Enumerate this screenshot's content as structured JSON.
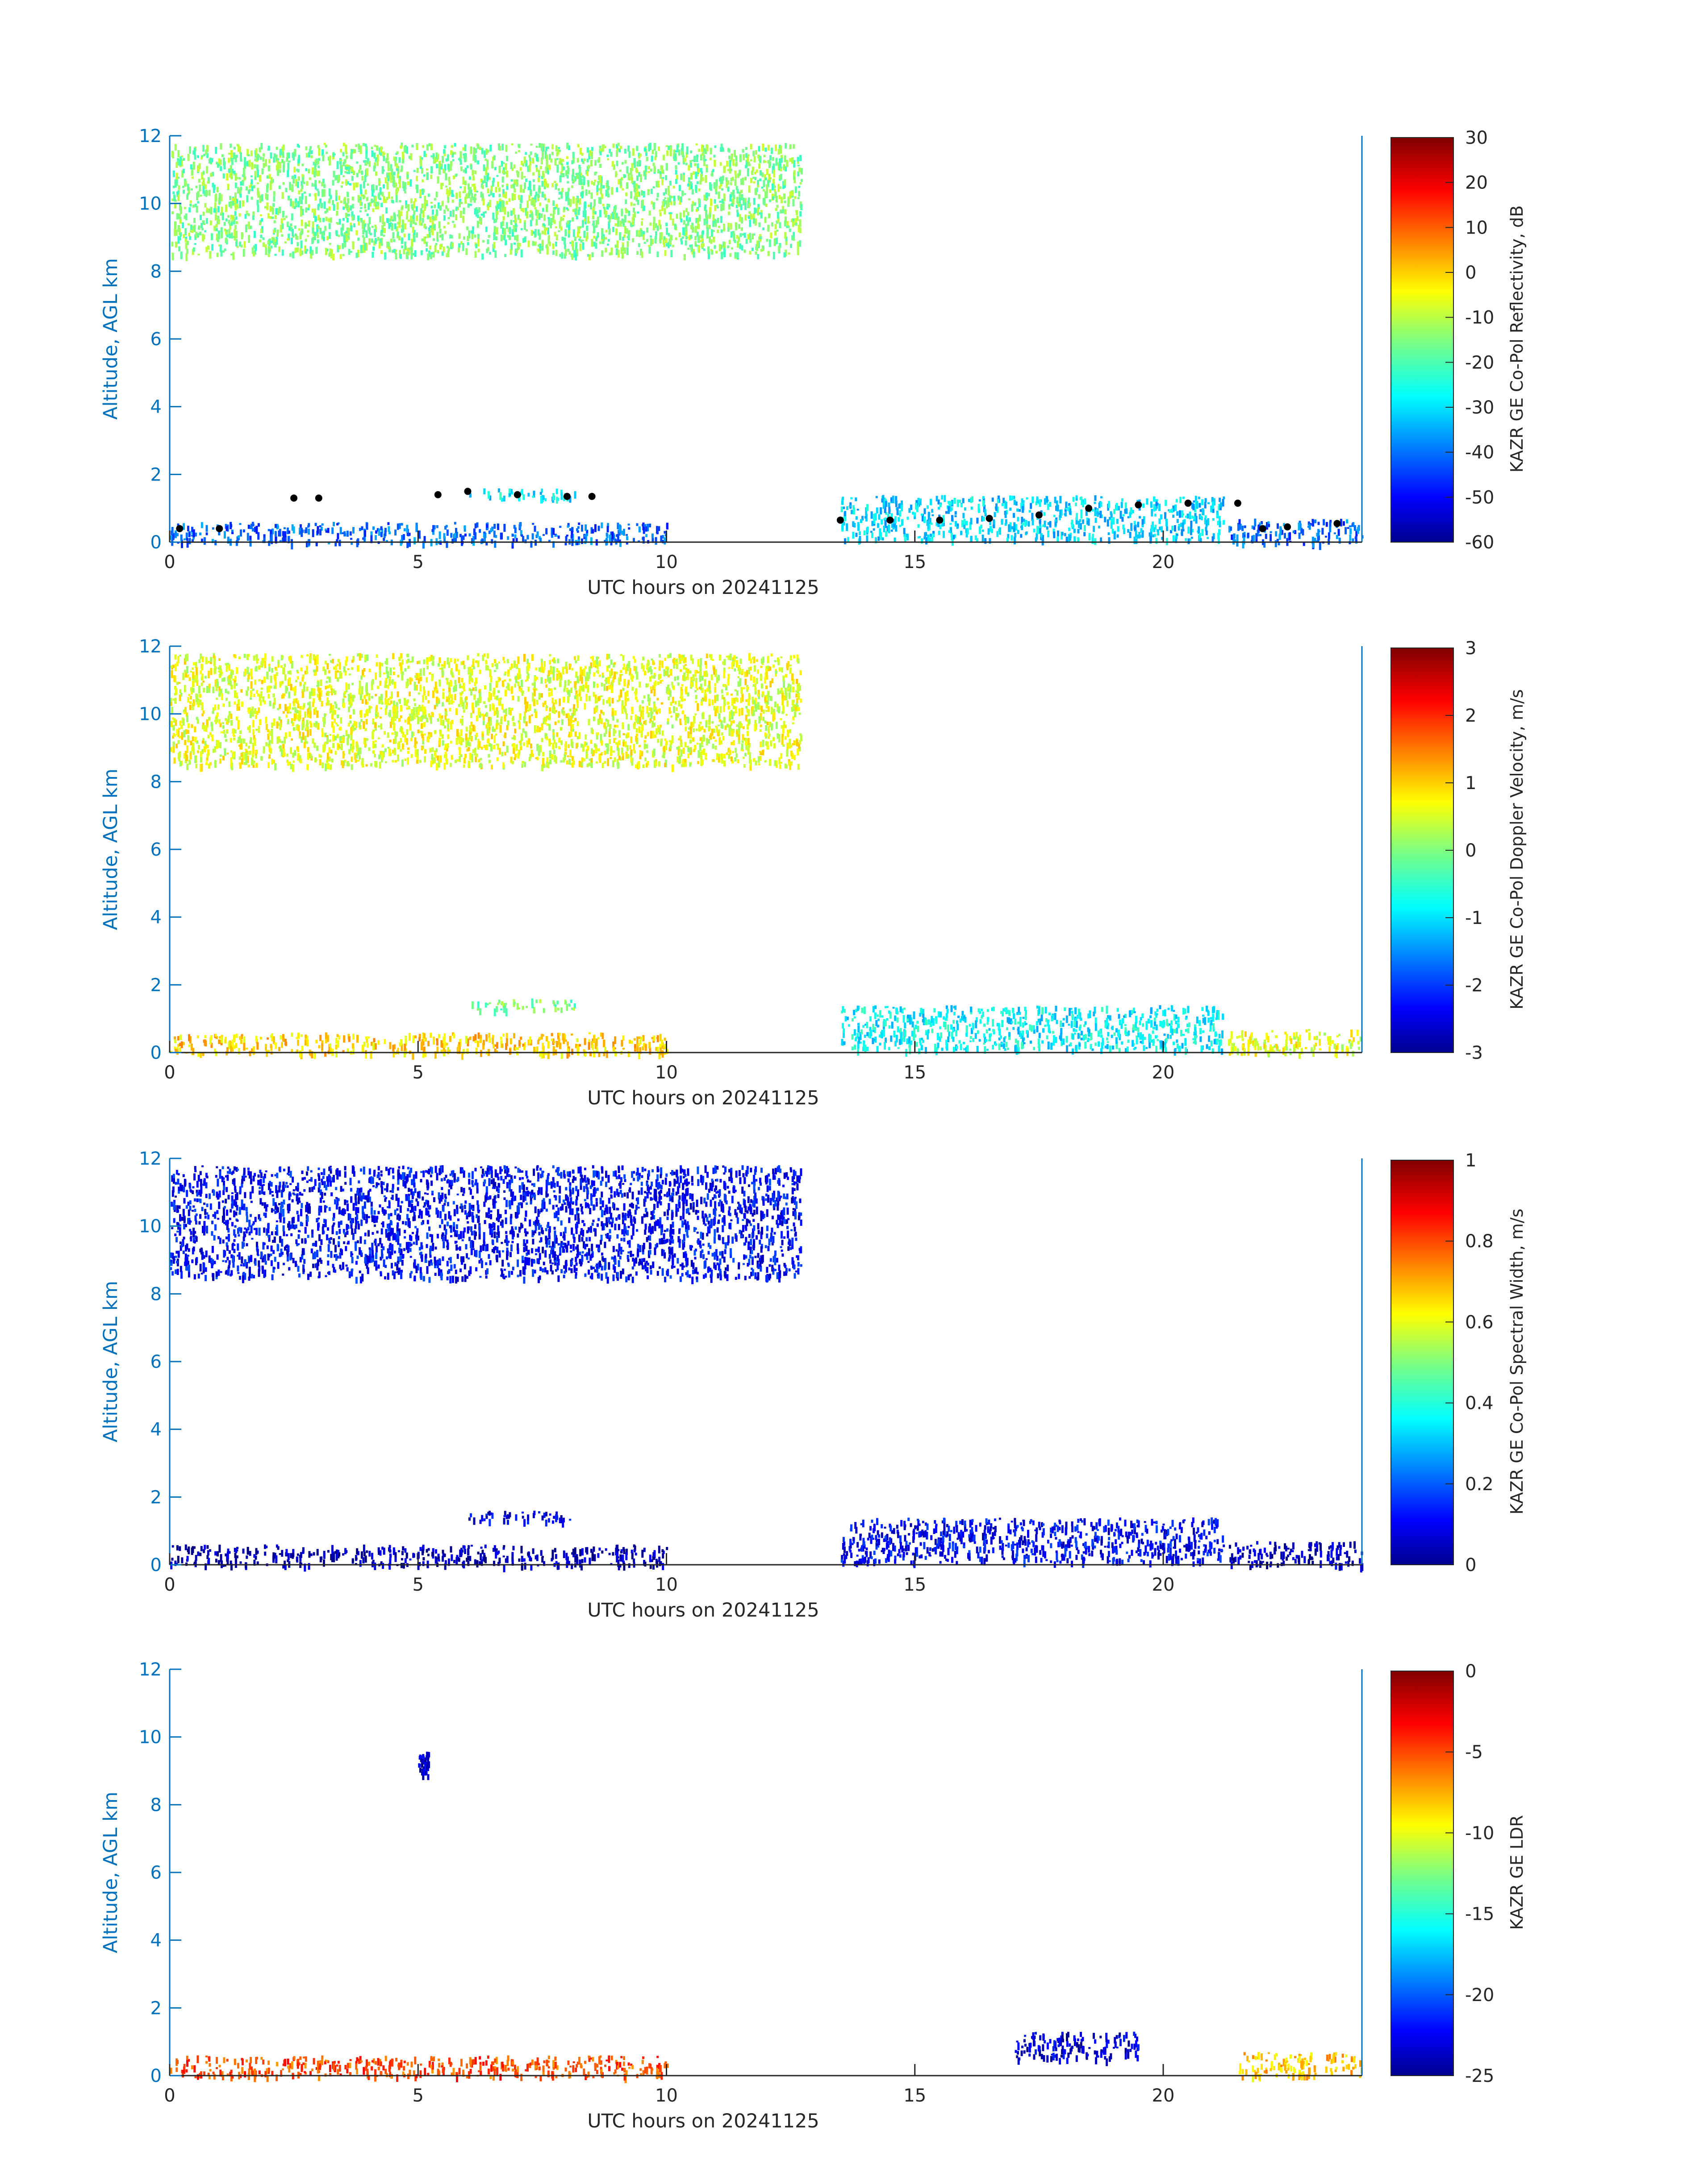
{
  "chart_data": [
    {
      "type": "heatmap",
      "xlabel": "UTC hours on 20241125",
      "ylabel": "Altitude, AGL km",
      "xlim": [
        0,
        24
      ],
      "ylim": [
        0,
        12
      ],
      "xticks": [
        "0",
        "5",
        "10",
        "15",
        "20"
      ],
      "yticks": [
        "0",
        "2",
        "4",
        "6",
        "8",
        "10",
        "12"
      ],
      "colorbar": {
        "label": "KAZR GE Co-Pol Reflectivity, dB",
        "range": [
          -60,
          30
        ],
        "ticks": [
          "30",
          "20",
          "10",
          "0",
          "-10",
          "-20",
          "-30",
          "-40",
          "-50",
          "-60"
        ],
        "colormap": "jet"
      },
      "echo_regions": [
        {
          "x": [
            0,
            12.7
          ],
          "y": [
            8.5,
            11.8
          ],
          "value": -15
        },
        {
          "x": [
            0,
            10
          ],
          "y": [
            0,
            0.6
          ],
          "value": -40
        },
        {
          "x": [
            6,
            8.2
          ],
          "y": [
            1.3,
            1.6
          ],
          "value": -28
        },
        {
          "x": [
            13.5,
            21.2
          ],
          "y": [
            0.1,
            1.4
          ],
          "value": -30
        },
        {
          "x": [
            21.3,
            24
          ],
          "y": [
            0,
            0.7
          ],
          "value": -40
        }
      ],
      "cloud_base_markers": {
        "color": "#000000",
        "x": [
          0.2,
          1,
          2.5,
          3,
          5.4,
          6,
          7,
          8,
          8.5,
          13.5,
          14.5,
          15.5,
          16.5,
          17.5,
          18.5,
          19.5,
          20.5,
          21.5,
          22,
          22.5,
          23.5
        ],
        "y": [
          0.4,
          0.4,
          1.3,
          1.3,
          1.4,
          1.5,
          1.4,
          1.35,
          1.35,
          0.65,
          0.65,
          0.65,
          0.7,
          0.8,
          1.0,
          1.1,
          1.15,
          1.15,
          0.4,
          0.45,
          0.55
        ]
      }
    },
    {
      "type": "heatmap",
      "xlabel": "UTC hours on 20241125",
      "ylabel": "Altitude, AGL km",
      "xlim": [
        0,
        24
      ],
      "ylim": [
        0,
        12
      ],
      "xticks": [
        "0",
        "5",
        "10",
        "15",
        "20"
      ],
      "yticks": [
        "0",
        "2",
        "4",
        "6",
        "8",
        "10",
        "12"
      ],
      "colorbar": {
        "label": "KAZR GE Co-Pol Doppler Velocity, m/s",
        "range": [
          -3,
          3
        ],
        "ticks": [
          "3",
          "2",
          "1",
          "0",
          "-1",
          "-2",
          "-3"
        ],
        "colormap": "jet"
      },
      "echo_regions": [
        {
          "x": [
            0,
            12.7
          ],
          "y": [
            8.5,
            11.8
          ],
          "value": 0.6
        },
        {
          "x": [
            0,
            10
          ],
          "y": [
            0,
            0.6
          ],
          "value": 1.0
        },
        {
          "x": [
            6,
            8.2
          ],
          "y": [
            1.3,
            1.6
          ],
          "value": 0.0
        },
        {
          "x": [
            13.5,
            21.2
          ],
          "y": [
            0.1,
            1.4
          ],
          "value": -0.8
        },
        {
          "x": [
            21.3,
            24
          ],
          "y": [
            0,
            0.7
          ],
          "value": 0.6
        }
      ]
    },
    {
      "type": "heatmap",
      "xlabel": "UTC hours on 20241125",
      "ylabel": "Altitude, AGL km",
      "xlim": [
        0,
        24
      ],
      "ylim": [
        0,
        12
      ],
      "xticks": [
        "0",
        "5",
        "10",
        "15",
        "20"
      ],
      "yticks": [
        "0",
        "2",
        "4",
        "6",
        "8",
        "10",
        "12"
      ],
      "colorbar": {
        "label": "KAZR GE Co-Pol Spectral Width, m/s",
        "range": [
          0,
          1
        ],
        "ticks": [
          "1",
          "0.8",
          "0.6",
          "0.4",
          "0.2",
          "0"
        ],
        "colormap": "jet"
      },
      "echo_regions": [
        {
          "x": [
            0,
            12.7
          ],
          "y": [
            8.5,
            11.8
          ],
          "value": 0.13
        },
        {
          "x": [
            0,
            10
          ],
          "y": [
            0,
            0.6
          ],
          "value": 0.05
        },
        {
          "x": [
            6,
            8.2
          ],
          "y": [
            1.3,
            1.6
          ],
          "value": 0.1
        },
        {
          "x": [
            13.5,
            21.2
          ],
          "y": [
            0.1,
            1.4
          ],
          "value": 0.12
        },
        {
          "x": [
            21.3,
            24
          ],
          "y": [
            0,
            0.7
          ],
          "value": 0.06
        }
      ]
    },
    {
      "type": "heatmap",
      "xlabel": "UTC hours on 20241125",
      "ylabel": "Altitude, AGL km",
      "xlim": [
        0,
        24
      ],
      "ylim": [
        0,
        12
      ],
      "xticks": [
        "0",
        "5",
        "10",
        "15",
        "20"
      ],
      "yticks": [
        "0",
        "2",
        "4",
        "6",
        "8",
        "10",
        "12"
      ],
      "colorbar": {
        "label": "KAZR GE LDR",
        "range": [
          -25,
          0
        ],
        "ticks": [
          "0",
          "-5",
          "-10",
          "-15",
          "-20",
          "-25"
        ],
        "colormap": "jet"
      },
      "echo_regions": [
        {
          "x": [
            0,
            10
          ],
          "y": [
            0,
            0.6
          ],
          "value": -5
        },
        {
          "x": [
            17,
            19.5
          ],
          "y": [
            0.5,
            1.3
          ],
          "value": -23
        },
        {
          "x": [
            5,
            5.2
          ],
          "y": [
            8.9,
            9.6
          ],
          "value": -23
        },
        {
          "x": [
            21.5,
            24
          ],
          "y": [
            0,
            0.7
          ],
          "value": -8
        }
      ]
    }
  ]
}
